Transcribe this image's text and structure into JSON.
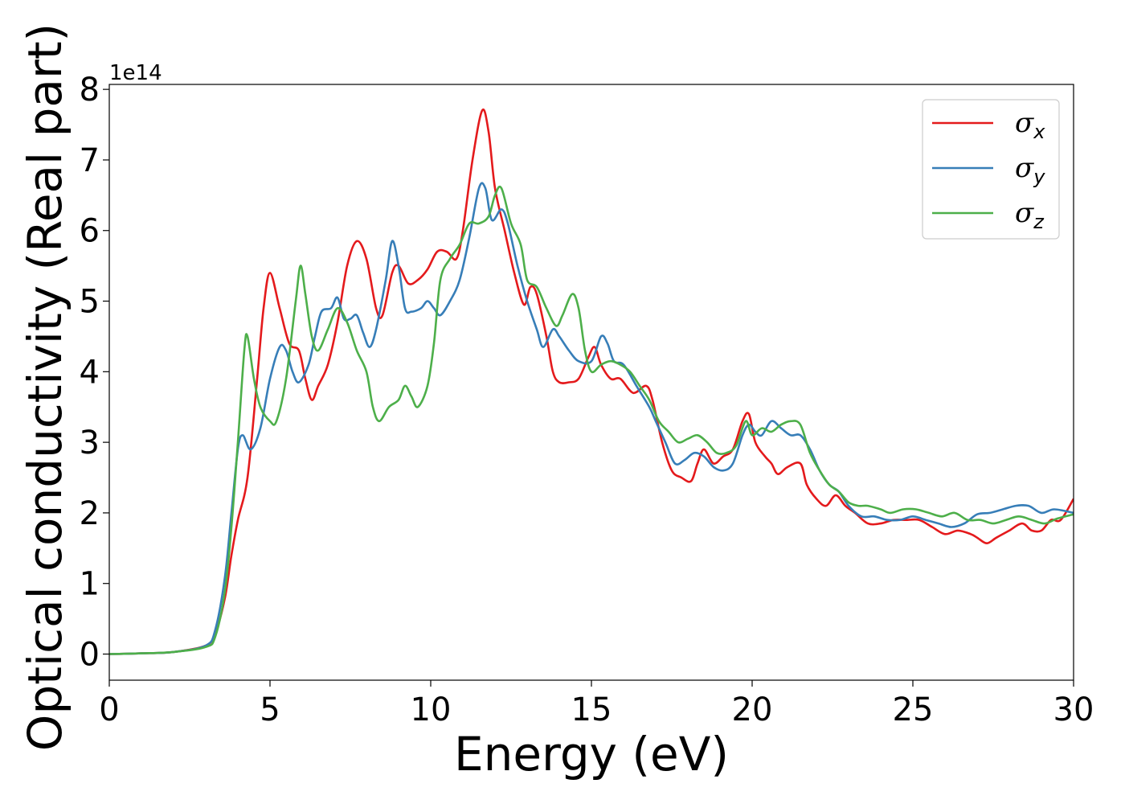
{
  "chart_data": {
    "type": "line",
    "xlabel": "Energy (eV)",
    "ylabel": "Optical conductivity (Real part)",
    "y_offset_text": "1e14",
    "xlim": [
      0,
      30
    ],
    "ylim": [
      -0.37,
      8.07
    ],
    "y_scale_factor": 100000000000000.0,
    "x_ticks": [
      0,
      5,
      10,
      15,
      20,
      25,
      30
    ],
    "y_ticks": [
      0,
      1,
      2,
      3,
      4,
      5,
      6,
      7,
      8
    ],
    "x_tick_labels": [
      "0",
      "5",
      "10",
      "15",
      "20",
      "25",
      "30"
    ],
    "y_tick_labels": [
      "0",
      "1",
      "2",
      "3",
      "4",
      "5",
      "6",
      "7",
      "8"
    ],
    "grid": false,
    "legend_position": "top-right",
    "series": [
      {
        "name": "σx",
        "symbol": "σ",
        "subscript": "x",
        "color": "#e41a1c",
        "points": [
          [
            0,
            0
          ],
          [
            1,
            0.01
          ],
          [
            2,
            0.03
          ],
          [
            3,
            0.12
          ],
          [
            3.3,
            0.3
          ],
          [
            3.6,
            0.8
          ],
          [
            3.8,
            1.4
          ],
          [
            4.0,
            1.9
          ],
          [
            4.3,
            2.5
          ],
          [
            4.6,
            3.9
          ],
          [
            4.8,
            4.9
          ],
          [
            5.0,
            5.4
          ],
          [
            5.3,
            4.9
          ],
          [
            5.6,
            4.4
          ],
          [
            5.9,
            4.3
          ],
          [
            6.1,
            3.9
          ],
          [
            6.3,
            3.6
          ],
          [
            6.5,
            3.8
          ],
          [
            6.8,
            4.1
          ],
          [
            7.1,
            4.7
          ],
          [
            7.4,
            5.5
          ],
          [
            7.7,
            5.85
          ],
          [
            8.0,
            5.6
          ],
          [
            8.3,
            4.9
          ],
          [
            8.5,
            4.8
          ],
          [
            8.8,
            5.4
          ],
          [
            9.0,
            5.5
          ],
          [
            9.3,
            5.25
          ],
          [
            9.6,
            5.3
          ],
          [
            9.9,
            5.45
          ],
          [
            10.2,
            5.7
          ],
          [
            10.5,
            5.7
          ],
          [
            10.8,
            5.6
          ],
          [
            11.0,
            6.0
          ],
          [
            11.3,
            7.0
          ],
          [
            11.6,
            7.7
          ],
          [
            11.8,
            7.4
          ],
          [
            12.0,
            6.6
          ],
          [
            12.3,
            6.0
          ],
          [
            12.6,
            5.4
          ],
          [
            12.9,
            4.95
          ],
          [
            13.1,
            5.2
          ],
          [
            13.3,
            5.1
          ],
          [
            13.6,
            4.5
          ],
          [
            13.8,
            4.0
          ],
          [
            14.0,
            3.85
          ],
          [
            14.3,
            3.85
          ],
          [
            14.6,
            3.9
          ],
          [
            14.9,
            4.2
          ],
          [
            15.1,
            4.35
          ],
          [
            15.3,
            4.1
          ],
          [
            15.6,
            3.9
          ],
          [
            15.9,
            3.9
          ],
          [
            16.3,
            3.7
          ],
          [
            16.7,
            3.8
          ],
          [
            16.9,
            3.6
          ],
          [
            17.2,
            3.0
          ],
          [
            17.5,
            2.6
          ],
          [
            17.8,
            2.5
          ],
          [
            18.1,
            2.45
          ],
          [
            18.3,
            2.7
          ],
          [
            18.5,
            2.9
          ],
          [
            18.8,
            2.7
          ],
          [
            19.1,
            2.8
          ],
          [
            19.4,
            2.9
          ],
          [
            19.7,
            3.3
          ],
          [
            19.9,
            3.4
          ],
          [
            20.1,
            3.0
          ],
          [
            20.4,
            2.8
          ],
          [
            20.6,
            2.7
          ],
          [
            20.8,
            2.55
          ],
          [
            21.1,
            2.65
          ],
          [
            21.5,
            2.7
          ],
          [
            21.7,
            2.4
          ],
          [
            22.0,
            2.2
          ],
          [
            22.3,
            2.1
          ],
          [
            22.6,
            2.25
          ],
          [
            22.9,
            2.1
          ],
          [
            23.2,
            2.0
          ],
          [
            23.6,
            1.85
          ],
          [
            24.0,
            1.85
          ],
          [
            24.4,
            1.9
          ],
          [
            24.8,
            1.9
          ],
          [
            25.2,
            1.9
          ],
          [
            25.6,
            1.8
          ],
          [
            26.0,
            1.7
          ],
          [
            26.4,
            1.75
          ],
          [
            26.8,
            1.7
          ],
          [
            27.0,
            1.65
          ],
          [
            27.3,
            1.57
          ],
          [
            27.6,
            1.65
          ],
          [
            28.0,
            1.75
          ],
          [
            28.4,
            1.85
          ],
          [
            28.7,
            1.75
          ],
          [
            29.0,
            1.75
          ],
          [
            29.3,
            1.9
          ],
          [
            29.6,
            1.9
          ],
          [
            30.0,
            2.2
          ]
        ]
      },
      {
        "name": "σy",
        "symbol": "σ",
        "subscript": "y",
        "color": "#377eb8",
        "points": [
          [
            0,
            0
          ],
          [
            1,
            0.01
          ],
          [
            2,
            0.03
          ],
          [
            3,
            0.12
          ],
          [
            3.3,
            0.35
          ],
          [
            3.6,
            1.1
          ],
          [
            3.8,
            2.0
          ],
          [
            4.0,
            2.9
          ],
          [
            4.15,
            3.1
          ],
          [
            4.4,
            2.9
          ],
          [
            4.7,
            3.2
          ],
          [
            5.0,
            3.9
          ],
          [
            5.3,
            4.35
          ],
          [
            5.5,
            4.3
          ],
          [
            5.7,
            4.0
          ],
          [
            5.9,
            3.85
          ],
          [
            6.2,
            4.1
          ],
          [
            6.4,
            4.5
          ],
          [
            6.6,
            4.85
          ],
          [
            6.9,
            4.9
          ],
          [
            7.1,
            5.05
          ],
          [
            7.3,
            4.75
          ],
          [
            7.5,
            4.75
          ],
          [
            7.7,
            4.8
          ],
          [
            7.9,
            4.55
          ],
          [
            8.1,
            4.35
          ],
          [
            8.3,
            4.6
          ],
          [
            8.6,
            5.3
          ],
          [
            8.8,
            5.85
          ],
          [
            9.0,
            5.5
          ],
          [
            9.2,
            4.9
          ],
          [
            9.4,
            4.85
          ],
          [
            9.7,
            4.9
          ],
          [
            9.9,
            5.0
          ],
          [
            10.1,
            4.9
          ],
          [
            10.3,
            4.8
          ],
          [
            10.6,
            5.0
          ],
          [
            10.9,
            5.3
          ],
          [
            11.2,
            5.9
          ],
          [
            11.5,
            6.6
          ],
          [
            11.7,
            6.6
          ],
          [
            11.9,
            6.15
          ],
          [
            12.2,
            6.3
          ],
          [
            12.4,
            6.1
          ],
          [
            12.7,
            5.5
          ],
          [
            13.0,
            5.0
          ],
          [
            13.3,
            4.6
          ],
          [
            13.5,
            4.35
          ],
          [
            13.8,
            4.6
          ],
          [
            14.0,
            4.5
          ],
          [
            14.3,
            4.3
          ],
          [
            14.6,
            4.15
          ],
          [
            15.0,
            4.15
          ],
          [
            15.3,
            4.5
          ],
          [
            15.5,
            4.4
          ],
          [
            15.7,
            4.15
          ],
          [
            16.0,
            4.1
          ],
          [
            16.4,
            3.8
          ],
          [
            16.8,
            3.5
          ],
          [
            17.0,
            3.3
          ],
          [
            17.3,
            3.0
          ],
          [
            17.6,
            2.7
          ],
          [
            17.9,
            2.75
          ],
          [
            18.2,
            2.85
          ],
          [
            18.5,
            2.8
          ],
          [
            18.8,
            2.65
          ],
          [
            19.1,
            2.6
          ],
          [
            19.4,
            2.7
          ],
          [
            19.7,
            3.1
          ],
          [
            19.9,
            3.25
          ],
          [
            20.1,
            3.15
          ],
          [
            20.3,
            3.1
          ],
          [
            20.6,
            3.3
          ],
          [
            20.9,
            3.2
          ],
          [
            21.2,
            3.1
          ],
          [
            21.5,
            3.1
          ],
          [
            21.8,
            2.9
          ],
          [
            22.1,
            2.6
          ],
          [
            22.4,
            2.4
          ],
          [
            22.7,
            2.3
          ],
          [
            23.0,
            2.1
          ],
          [
            23.4,
            1.95
          ],
          [
            23.8,
            1.95
          ],
          [
            24.2,
            1.9
          ],
          [
            24.6,
            1.9
          ],
          [
            25.0,
            1.95
          ],
          [
            25.4,
            1.9
          ],
          [
            25.8,
            1.85
          ],
          [
            26.2,
            1.8
          ],
          [
            26.6,
            1.85
          ],
          [
            27.0,
            1.98
          ],
          [
            27.4,
            2.0
          ],
          [
            27.8,
            2.05
          ],
          [
            28.2,
            2.1
          ],
          [
            28.6,
            2.1
          ],
          [
            29.0,
            2.0
          ],
          [
            29.4,
            2.05
          ],
          [
            30.0,
            2.0
          ]
        ]
      },
      {
        "name": "σz",
        "symbol": "σ",
        "subscript": "z",
        "color": "#4daf4a",
        "points": [
          [
            0,
            0
          ],
          [
            1,
            0.01
          ],
          [
            2,
            0.03
          ],
          [
            3,
            0.1
          ],
          [
            3.3,
            0.25
          ],
          [
            3.6,
            0.9
          ],
          [
            3.8,
            1.8
          ],
          [
            4.0,
            3.0
          ],
          [
            4.2,
            4.3
          ],
          [
            4.3,
            4.5
          ],
          [
            4.5,
            3.9
          ],
          [
            4.7,
            3.5
          ],
          [
            5.0,
            3.3
          ],
          [
            5.2,
            3.3
          ],
          [
            5.5,
            3.9
          ],
          [
            5.8,
            5.0
          ],
          [
            5.95,
            5.5
          ],
          [
            6.1,
            5.1
          ],
          [
            6.3,
            4.5
          ],
          [
            6.5,
            4.3
          ],
          [
            6.8,
            4.6
          ],
          [
            7.1,
            4.9
          ],
          [
            7.4,
            4.7
          ],
          [
            7.7,
            4.3
          ],
          [
            8.0,
            4.0
          ],
          [
            8.2,
            3.5
          ],
          [
            8.4,
            3.3
          ],
          [
            8.7,
            3.5
          ],
          [
            9.0,
            3.6
          ],
          [
            9.2,
            3.8
          ],
          [
            9.4,
            3.65
          ],
          [
            9.6,
            3.5
          ],
          [
            9.9,
            3.8
          ],
          [
            10.1,
            4.4
          ],
          [
            10.3,
            5.3
          ],
          [
            10.6,
            5.6
          ],
          [
            10.9,
            5.8
          ],
          [
            11.2,
            6.1
          ],
          [
            11.5,
            6.1
          ],
          [
            11.8,
            6.2
          ],
          [
            12.0,
            6.5
          ],
          [
            12.2,
            6.6
          ],
          [
            12.5,
            6.1
          ],
          [
            12.8,
            5.8
          ],
          [
            13.0,
            5.3
          ],
          [
            13.3,
            5.2
          ],
          [
            13.6,
            4.9
          ],
          [
            13.9,
            4.65
          ],
          [
            14.1,
            4.8
          ],
          [
            14.4,
            5.1
          ],
          [
            14.6,
            4.9
          ],
          [
            14.8,
            4.3
          ],
          [
            15.0,
            4.0
          ],
          [
            15.3,
            4.1
          ],
          [
            15.6,
            4.15
          ],
          [
            15.9,
            4.1
          ],
          [
            16.2,
            4.0
          ],
          [
            16.5,
            3.8
          ],
          [
            16.8,
            3.6
          ],
          [
            17.1,
            3.3
          ],
          [
            17.4,
            3.15
          ],
          [
            17.7,
            3.0
          ],
          [
            18.0,
            3.05
          ],
          [
            18.3,
            3.1
          ],
          [
            18.6,
            3.0
          ],
          [
            18.9,
            2.85
          ],
          [
            19.2,
            2.85
          ],
          [
            19.5,
            2.95
          ],
          [
            19.8,
            3.3
          ],
          [
            20.0,
            3.1
          ],
          [
            20.3,
            3.2
          ],
          [
            20.6,
            3.15
          ],
          [
            20.9,
            3.25
          ],
          [
            21.2,
            3.3
          ],
          [
            21.5,
            3.25
          ],
          [
            21.8,
            2.85
          ],
          [
            22.1,
            2.6
          ],
          [
            22.4,
            2.4
          ],
          [
            22.7,
            2.3
          ],
          [
            23.0,
            2.15
          ],
          [
            23.3,
            2.1
          ],
          [
            23.6,
            2.1
          ],
          [
            24.0,
            2.05
          ],
          [
            24.3,
            2.0
          ],
          [
            24.7,
            2.05
          ],
          [
            25.1,
            2.05
          ],
          [
            25.5,
            2.0
          ],
          [
            25.9,
            1.95
          ],
          [
            26.3,
            2.0
          ],
          [
            26.7,
            1.9
          ],
          [
            27.1,
            1.9
          ],
          [
            27.5,
            1.85
          ],
          [
            27.9,
            1.9
          ],
          [
            28.3,
            1.95
          ],
          [
            28.7,
            1.9
          ],
          [
            29.1,
            1.85
          ],
          [
            29.5,
            1.92
          ],
          [
            30.0,
            1.98
          ]
        ]
      }
    ]
  }
}
